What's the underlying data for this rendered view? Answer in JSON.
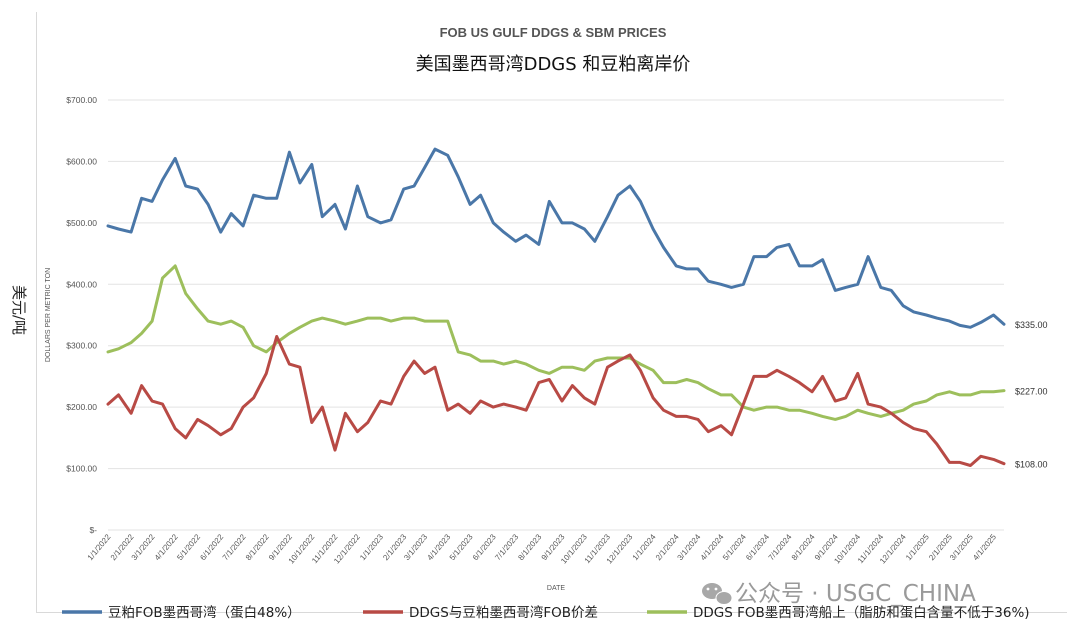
{
  "chart_data": {
    "type": "line",
    "title": "FOB US GULF DDGS & SBM PRICES",
    "subtitle": "美国墨西哥湾DDGS 和豆粕离岸价",
    "xlabel": "DATE",
    "ylabel": "DOLLARS PER METRIC TON",
    "ylabel_cn": "美元/吨",
    "ylim": [
      0,
      700
    ],
    "yticks": [
      {
        "value": 700,
        "label": "$700.00"
      },
      {
        "value": 600,
        "label": "$600.00"
      },
      {
        "value": 500,
        "label": "$500.00"
      },
      {
        "value": 400,
        "label": "$400.00"
      },
      {
        "value": 300,
        "label": "$300.00"
      },
      {
        "value": 200,
        "label": "$200.00"
      },
      {
        "value": 100,
        "label": "$100.00"
      },
      {
        "value": 0,
        "label": "$-"
      }
    ],
    "xticks": [
      "1/1/2022",
      "2/1/2022",
      "3/1/2022",
      "4/1/2022",
      "5/1/2022",
      "6/1/2022",
      "7/1/2022",
      "8/1/2022",
      "9/1/2022",
      "10/1/2022",
      "11/1/2022",
      "12/1/2022",
      "1/1/2023",
      "2/1/2023",
      "3/1/2023",
      "4/1/2023",
      "5/1/2023",
      "6/1/2023",
      "7/1/2023",
      "8/1/2023",
      "9/1/2023",
      "10/1/2023",
      "11/1/2023",
      "12/1/2023",
      "1/1/2024",
      "2/1/2024",
      "3/1/2024",
      "4/1/2024",
      "5/1/2024",
      "6/1/2024",
      "7/1/2024",
      "8/1/2024",
      "9/1/2024",
      "10/1/2024",
      "11/1/2024",
      "12/1/2024",
      "1/1/2025",
      "2/1/2025",
      "3/1/2025",
      "4/1/2025"
    ],
    "grid": true,
    "legend_position": "bottom",
    "series": [
      {
        "name": "豆粕FOB墨西哥湾（蛋白48%）",
        "color": "#4a77a8",
        "end_label": "$335.00",
        "x": [
          "1/1/2022",
          "1/15/2022",
          "2/1/2022",
          "2/15/2022",
          "3/1/2022",
          "3/15/2022",
          "4/1/2022",
          "4/15/2022",
          "5/1/2022",
          "5/15/2022",
          "6/1/2022",
          "6/15/2022",
          "7/1/2022",
          "7/15/2022",
          "8/1/2022",
          "8/15/2022",
          "9/1/2022",
          "9/15/2022",
          "10/1/2022",
          "10/15/2022",
          "11/1/2022",
          "11/15/2022",
          "12/1/2022",
          "12/15/2022",
          "1/1/2023",
          "1/15/2023",
          "2/1/2023",
          "2/15/2023",
          "3/1/2023",
          "3/15/2023",
          "4/1/2023",
          "4/15/2023",
          "5/1/2023",
          "5/15/2023",
          "6/1/2023",
          "6/15/2023",
          "7/1/2023",
          "7/15/2023",
          "8/1/2023",
          "8/15/2023",
          "9/1/2023",
          "9/15/2023",
          "10/1/2023",
          "10/15/2023",
          "11/1/2023",
          "11/15/2023",
          "12/1/2023",
          "12/15/2023",
          "1/1/2024",
          "1/15/2024",
          "2/1/2024",
          "2/15/2024",
          "3/1/2024",
          "3/15/2024",
          "4/1/2024",
          "4/15/2024",
          "5/1/2024",
          "5/15/2024",
          "6/1/2024",
          "6/15/2024",
          "7/1/2024",
          "7/15/2024",
          "8/1/2024",
          "8/15/2024",
          "9/1/2024",
          "9/15/2024",
          "10/1/2024",
          "10/15/2024",
          "11/1/2024",
          "11/15/2024",
          "12/1/2024",
          "12/15/2024",
          "1/1/2025",
          "1/15/2025",
          "2/1/2025",
          "2/15/2025",
          "3/1/2025",
          "3/15/2025",
          "4/1/2025",
          "4/15/2025"
        ],
        "values": [
          495,
          490,
          485,
          540,
          535,
          570,
          605,
          560,
          555,
          530,
          485,
          515,
          495,
          545,
          540,
          540,
          615,
          565,
          595,
          510,
          530,
          490,
          560,
          510,
          500,
          505,
          555,
          560,
          590,
          620,
          610,
          575,
          530,
          545,
          500,
          485,
          470,
          480,
          465,
          535,
          500,
          500,
          490,
          470,
          510,
          545,
          560,
          535,
          490,
          460,
          430,
          425,
          425,
          405,
          400,
          395,
          400,
          445,
          445,
          460,
          465,
          430,
          430,
          440,
          390,
          395,
          400,
          445,
          395,
          390,
          365,
          355,
          350,
          345,
          340,
          333,
          330,
          338,
          350,
          335
        ]
      },
      {
        "name": "DDGS与豆粕墨西哥湾FOB价差",
        "color": "#b84a45",
        "end_label": "$108.00",
        "x": [
          "1/1/2022",
          "1/15/2022",
          "2/1/2022",
          "2/15/2022",
          "3/1/2022",
          "3/15/2022",
          "4/1/2022",
          "4/15/2022",
          "5/1/2022",
          "5/15/2022",
          "6/1/2022",
          "6/15/2022",
          "7/1/2022",
          "7/15/2022",
          "8/1/2022",
          "8/15/2022",
          "9/1/2022",
          "9/15/2022",
          "10/1/2022",
          "10/15/2022",
          "11/1/2022",
          "11/15/2022",
          "12/1/2022",
          "12/15/2022",
          "1/1/2023",
          "1/15/2023",
          "2/1/2023",
          "2/15/2023",
          "3/1/2023",
          "3/15/2023",
          "4/1/2023",
          "4/15/2023",
          "5/1/2023",
          "5/15/2023",
          "6/1/2023",
          "6/15/2023",
          "7/1/2023",
          "7/15/2023",
          "8/1/2023",
          "8/15/2023",
          "9/1/2023",
          "9/15/2023",
          "10/1/2023",
          "10/15/2023",
          "11/1/2023",
          "11/15/2023",
          "12/1/2023",
          "12/15/2023",
          "1/1/2024",
          "1/15/2024",
          "2/1/2024",
          "2/15/2024",
          "3/1/2024",
          "3/15/2024",
          "4/1/2024",
          "4/15/2024",
          "5/1/2024",
          "5/15/2024",
          "6/1/2024",
          "6/15/2024",
          "7/1/2024",
          "7/15/2024",
          "8/1/2024",
          "8/15/2024",
          "9/1/2024",
          "9/15/2024",
          "10/1/2024",
          "10/15/2024",
          "11/1/2024",
          "11/15/2024",
          "12/1/2024",
          "12/15/2024",
          "1/1/2025",
          "1/15/2025",
          "2/1/2025",
          "2/15/2025",
          "3/1/2025",
          "3/15/2025",
          "4/1/2025",
          "4/15/2025"
        ],
        "values": [
          205,
          220,
          190,
          235,
          210,
          205,
          165,
          150,
          180,
          170,
          155,
          165,
          200,
          215,
          255,
          315,
          270,
          265,
          175,
          200,
          130,
          190,
          160,
          175,
          210,
          205,
          250,
          275,
          255,
          265,
          195,
          205,
          190,
          210,
          200,
          205,
          200,
          195,
          240,
          245,
          210,
          235,
          215,
          205,
          265,
          275,
          285,
          260,
          215,
          195,
          185,
          185,
          180,
          160,
          170,
          155,
          205,
          250,
          250,
          260,
          250,
          240,
          225,
          250,
          210,
          215,
          255,
          205,
          200,
          190,
          175,
          165,
          160,
          140,
          110,
          110,
          105,
          120,
          115,
          108
        ]
      },
      {
        "name": "DDGS FOB墨西哥湾船上（脂肪和蛋白含量不低于36%)",
        "color": "#9dbf5c",
        "end_label": "$227.00",
        "x": [
          "1/1/2022",
          "1/15/2022",
          "2/1/2022",
          "2/15/2022",
          "3/1/2022",
          "3/15/2022",
          "4/1/2022",
          "4/15/2022",
          "5/1/2022",
          "5/15/2022",
          "6/1/2022",
          "6/15/2022",
          "7/1/2022",
          "7/15/2022",
          "8/1/2022",
          "8/15/2022",
          "9/1/2022",
          "9/15/2022",
          "10/1/2022",
          "10/15/2022",
          "11/1/2022",
          "11/15/2022",
          "12/1/2022",
          "12/15/2022",
          "1/1/2023",
          "1/15/2023",
          "2/1/2023",
          "2/15/2023",
          "3/1/2023",
          "3/15/2023",
          "4/1/2023",
          "4/15/2023",
          "5/1/2023",
          "5/15/2023",
          "6/1/2023",
          "6/15/2023",
          "7/1/2023",
          "7/15/2023",
          "8/1/2023",
          "8/15/2023",
          "9/1/2023",
          "9/15/2023",
          "10/1/2023",
          "10/15/2023",
          "11/1/2023",
          "11/15/2023",
          "12/1/2023",
          "12/15/2023",
          "1/1/2024",
          "1/15/2024",
          "2/1/2024",
          "2/15/2024",
          "3/1/2024",
          "3/15/2024",
          "4/1/2024",
          "4/15/2024",
          "5/1/2024",
          "5/15/2024",
          "6/1/2024",
          "6/15/2024",
          "7/1/2024",
          "7/15/2024",
          "8/1/2024",
          "8/15/2024",
          "9/1/2024",
          "9/15/2024",
          "10/1/2024",
          "10/15/2024",
          "11/1/2024",
          "11/15/2024",
          "12/1/2024",
          "12/15/2024",
          "1/1/2025",
          "1/15/2025",
          "2/1/2025",
          "2/15/2025",
          "3/1/2025",
          "3/15/2025",
          "4/1/2025",
          "4/15/2025"
        ],
        "values": [
          290,
          295,
          305,
          320,
          340,
          410,
          430,
          385,
          360,
          340,
          335,
          340,
          330,
          300,
          290,
          305,
          320,
          330,
          340,
          345,
          340,
          335,
          340,
          345,
          345,
          340,
          345,
          345,
          340,
          340,
          340,
          290,
          285,
          275,
          275,
          270,
          275,
          270,
          260,
          255,
          265,
          265,
          260,
          275,
          280,
          280,
          280,
          270,
          260,
          240,
          240,
          245,
          240,
          230,
          220,
          220,
          200,
          195,
          200,
          200,
          195,
          195,
          190,
          185,
          180,
          185,
          195,
          190,
          185,
          190,
          195,
          205,
          210,
          220,
          225,
          220,
          220,
          225,
          225,
          227
        ]
      }
    ]
  },
  "watermark": "公众号 · USGC_CHINA"
}
